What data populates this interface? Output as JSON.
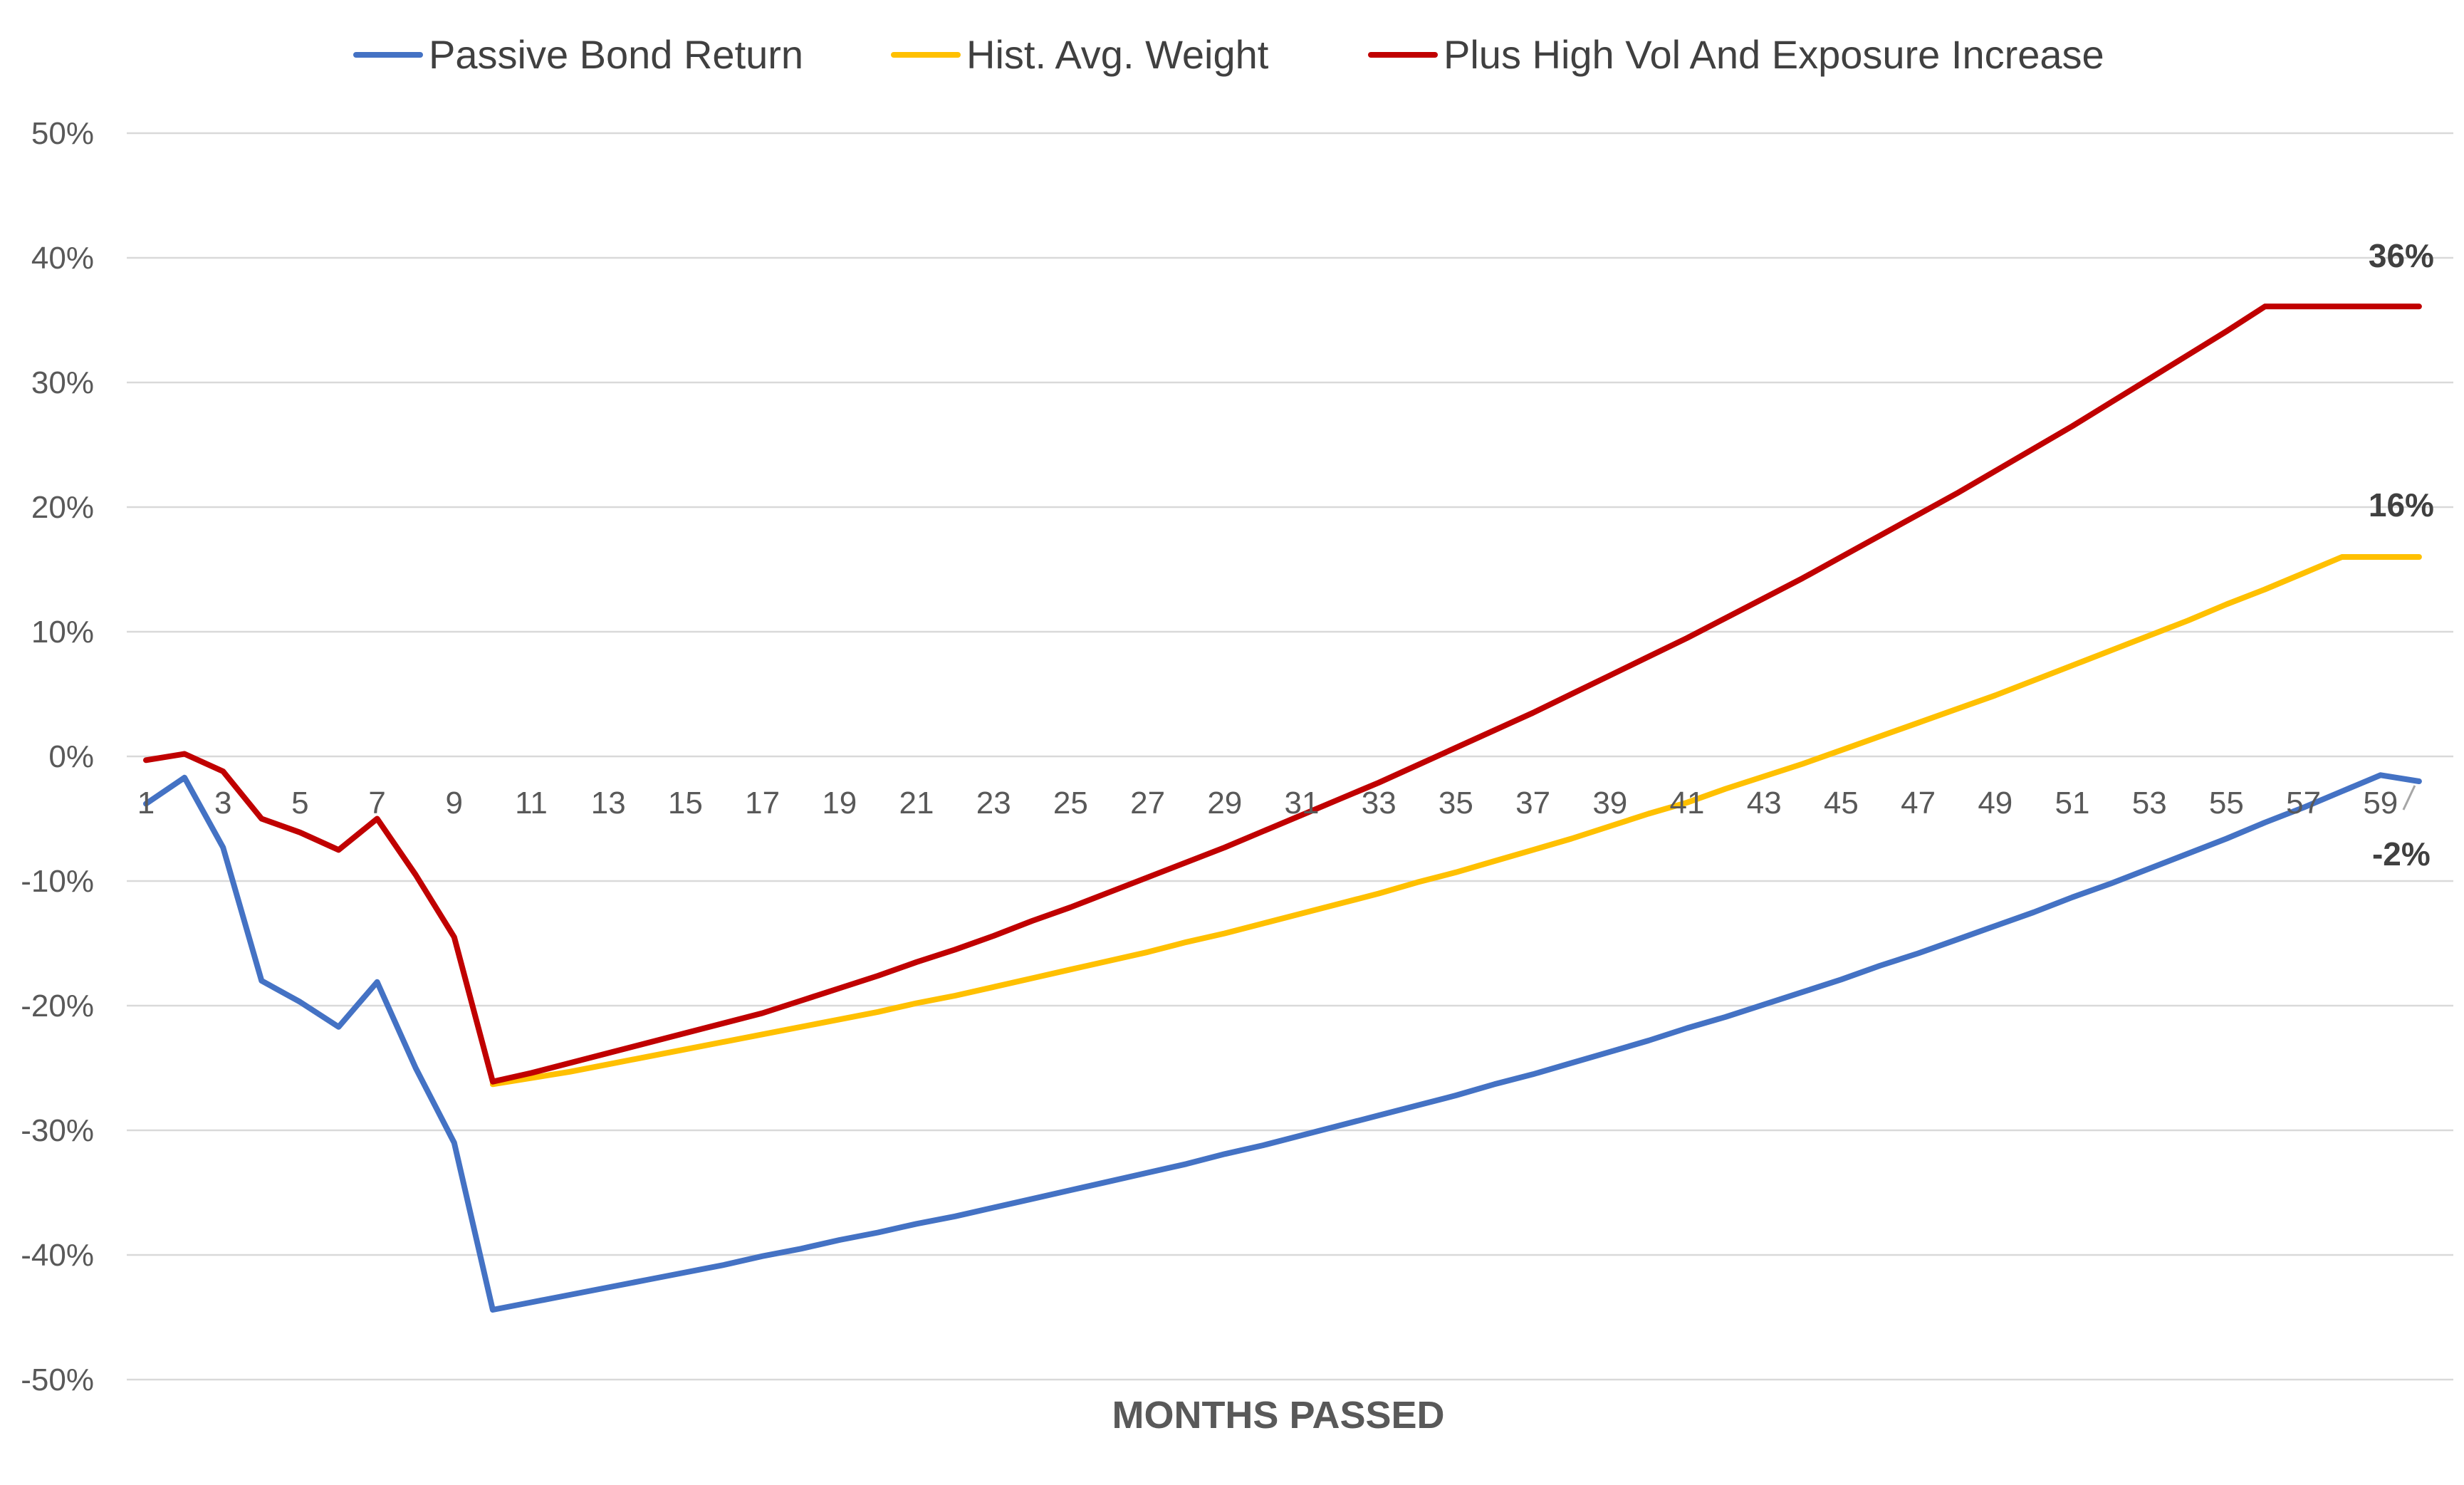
{
  "chart_data": {
    "type": "line",
    "xlabel": "MONTHS PASSED",
    "ylabel": "",
    "ylim": [
      -50,
      50
    ],
    "yticks": [
      50,
      40,
      30,
      20,
      10,
      0,
      -10,
      -20,
      -30,
      -40,
      -50
    ],
    "ytick_labels": [
      "50%",
      "40%",
      "30%",
      "20%",
      "10%",
      "0%",
      "-10%",
      "-20%",
      "-30%",
      "-40%",
      "-50%"
    ],
    "x": [
      1,
      2,
      3,
      4,
      5,
      6,
      7,
      8,
      9,
      10,
      11,
      12,
      13,
      14,
      15,
      16,
      17,
      18,
      19,
      20,
      21,
      22,
      23,
      24,
      25,
      26,
      27,
      28,
      29,
      30,
      31,
      32,
      33,
      34,
      35,
      36,
      37,
      38,
      39,
      40,
      41,
      42,
      43,
      44,
      45,
      46,
      47,
      48,
      49,
      50,
      51,
      52,
      53,
      54,
      55,
      56,
      57,
      58,
      59,
      60
    ],
    "xtick_labels": [
      "1",
      "3",
      "5",
      "7",
      "9",
      "11",
      "13",
      "15",
      "17",
      "19",
      "21",
      "23",
      "25",
      "27",
      "29",
      "31",
      "33",
      "35",
      "37",
      "39",
      "41",
      "43",
      "45",
      "47",
      "49",
      "51",
      "53",
      "55",
      "57",
      "59"
    ],
    "grid": true,
    "legend_position": "top",
    "series": [
      {
        "name": "Passive Bond Return",
        "color": "#4472C4",
        "values": [
          -3.8,
          -1.7,
          -7.3,
          -18.0,
          -19.7,
          -21.7,
          -18.1,
          -25.0,
          -31.0,
          -44.4,
          -43.8,
          -43.2,
          -42.6,
          -42.0,
          -41.4,
          -40.8,
          -40.1,
          -39.5,
          -38.8,
          -38.2,
          -37.5,
          -36.9,
          -36.2,
          -35.5,
          -34.8,
          -34.1,
          -33.4,
          -32.7,
          -31.9,
          -31.2,
          -30.4,
          -29.6,
          -28.8,
          -28.0,
          -27.2,
          -26.3,
          -25.5,
          -24.6,
          -23.7,
          -22.8,
          -21.8,
          -20.9,
          -19.9,
          -18.9,
          -17.9,
          -16.8,
          -15.8,
          -14.7,
          -13.6,
          -12.5,
          -11.3,
          -10.2,
          -9.0,
          -7.8,
          -6.6,
          -5.3,
          -4.1,
          -2.8,
          -1.5,
          -2.0
        ]
      },
      {
        "name": "Hist. Avg. Weight",
        "color": "#FFC000",
        "values": [
          null,
          null,
          null,
          null,
          null,
          null,
          null,
          null,
          null,
          -26.3,
          -25.8,
          -25.3,
          -24.7,
          -24.1,
          -23.5,
          -22.9,
          -22.3,
          -21.7,
          -21.1,
          -20.5,
          -19.8,
          -19.2,
          -18.5,
          -17.8,
          -17.1,
          -16.4,
          -15.7,
          -14.9,
          -14.2,
          -13.4,
          -12.6,
          -11.8,
          -11.0,
          -10.1,
          -9.3,
          -8.4,
          -7.5,
          -6.6,
          -5.6,
          -4.6,
          -3.7,
          -2.6,
          -1.6,
          -0.6,
          0.5,
          1.6,
          2.7,
          3.8,
          4.9,
          6.1,
          7.3,
          8.5,
          9.7,
          10.9,
          12.2,
          13.4,
          14.7,
          16.0,
          16.0,
          16.0
        ]
      },
      {
        "name": "Plus High Vol And Exposure Increase",
        "color": "#C00000",
        "values": [
          -0.3,
          0.2,
          -1.2,
          -5.0,
          -6.1,
          -7.5,
          -5.0,
          -9.5,
          -14.5,
          -26.1,
          -25.4,
          -24.6,
          -23.8,
          -23.0,
          -22.2,
          -21.4,
          -20.6,
          -19.6,
          -18.6,
          -17.6,
          -16.5,
          -15.5,
          -14.4,
          -13.2,
          -12.1,
          -10.9,
          -9.7,
          -8.5,
          -7.3,
          -6.0,
          -4.7,
          -3.4,
          -2.1,
          -0.7,
          0.7,
          2.1,
          3.5,
          5.0,
          6.5,
          8.0,
          9.5,
          11.1,
          12.7,
          14.3,
          16.0,
          17.7,
          19.4,
          21.1,
          22.9,
          24.7,
          26.5,
          28.4,
          30.3,
          32.2,
          34.1,
          36.1,
          36.1,
          36.1,
          36.1,
          36.1
        ]
      }
    ],
    "end_labels": [
      {
        "series": "Plus High Vol And Exposure Increase",
        "text": "36%",
        "value": 36
      },
      {
        "series": "Hist. Avg. Weight",
        "text": "16%",
        "value": 16
      },
      {
        "series": "Passive Bond Return",
        "text": "-2%",
        "value": -2
      }
    ]
  }
}
